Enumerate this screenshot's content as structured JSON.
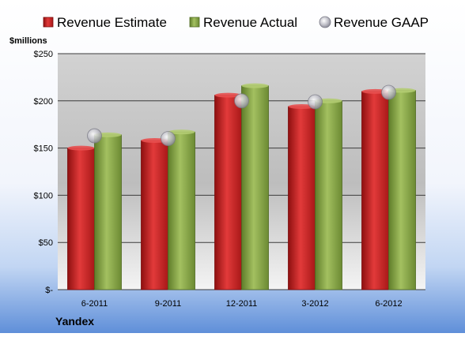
{
  "chart_data": {
    "type": "bar",
    "categories": [
      "6-2011",
      "9-2011",
      "12-2011",
      "3-2012",
      "6-2012"
    ],
    "series": [
      {
        "name": "Revenue Estimate",
        "type": "bar",
        "values": [
          150,
          158,
          206,
          194,
          210
        ],
        "color": "#d42a2a"
      },
      {
        "name": "Revenue Actual",
        "type": "bar",
        "values": [
          164,
          167,
          216,
          200,
          211
        ],
        "color": "#8aa84a"
      },
      {
        "name": "Revenue GAAP",
        "type": "marker",
        "values": [
          163,
          160,
          200,
          199,
          209
        ],
        "color": "#b8b8c0"
      }
    ],
    "ylabel": "$millions",
    "ylim": [
      0,
      250
    ],
    "yticks": [
      0,
      50,
      100,
      150,
      200,
      250
    ],
    "ytick_labels": [
      "$-",
      "$50",
      "$100",
      "$150",
      "$200",
      "$250"
    ],
    "company": "Yandex",
    "grid": true,
    "legend_position": "top"
  }
}
